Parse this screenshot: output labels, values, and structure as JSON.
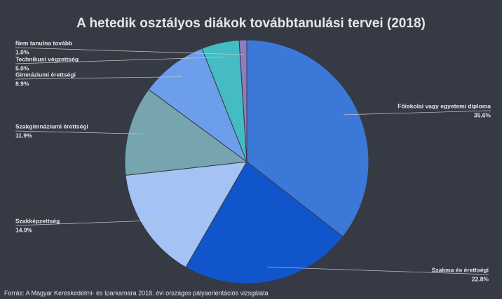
{
  "chart_data": {
    "type": "pie",
    "title": "A hetedik osztályos diákok továbbtanulási tervei (2018)",
    "source": "Forrás: A Magyar  Kereskedelmi- és Iparkamara 2018. évi országos pályaorientációs vizsgálata",
    "categories": [
      "Főiskolai vagy egyetemi diploma",
      "Szakma és érettségi",
      "Szakképzettség",
      "Szakgimnáziumi érettségi",
      "Gimnáziumi érettségi",
      "Technikusi végzettség",
      "Nem tanulna tovább"
    ],
    "values": [
      35.6,
      22.8,
      14.9,
      11.9,
      8.9,
      5.0,
      1.0
    ],
    "value_labels": [
      "35.6%",
      "22.8%",
      "14.9%",
      "11.9%",
      "8.9%",
      "5.0%",
      "1.0%"
    ],
    "colors": [
      "#3c78d8",
      "#1155cc",
      "#a4c2f4",
      "#76a5af",
      "#6d9eeb",
      "#45bcc4",
      "#8e7cc3"
    ]
  }
}
